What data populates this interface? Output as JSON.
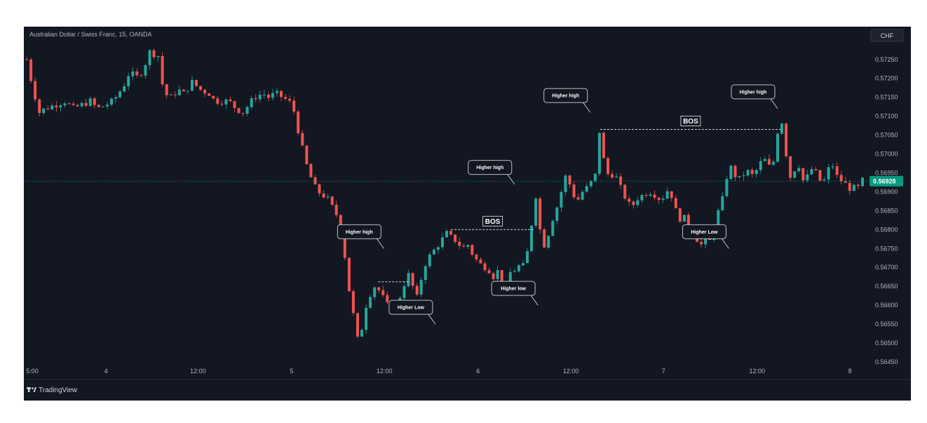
{
  "chart_data": {
    "type": "candlestick",
    "title": "Australian Dollar / Swiss Franc, 15, OANDA",
    "currency": "CHF",
    "brand": "TradingView",
    "ylim": [
      0.5645,
      0.5727
    ],
    "y_ticks": [
      "0.57250",
      "0.57200",
      "0.57150",
      "0.57100",
      "0.57050",
      "0.57000",
      "0.56950",
      "0.56900",
      "0.56850",
      "0.56800",
      "0.56750",
      "0.56700",
      "0.56650",
      "0.56600",
      "0.56550",
      "0.56500",
      "0.56450"
    ],
    "x_ticks": [
      {
        "label": "5:00",
        "pos": 0
      },
      {
        "label": "4",
        "pos": 0.095
      },
      {
        "label": "12:00",
        "pos": 0.205
      },
      {
        "label": "5",
        "pos": 0.317
      },
      {
        "label": "12:00",
        "pos": 0.428
      },
      {
        "label": "6",
        "pos": 0.54
      },
      {
        "label": "12:00",
        "pos": 0.651
      },
      {
        "label": "7",
        "pos": 0.762
      },
      {
        "label": "12:00",
        "pos": 0.874
      },
      {
        "label": "8",
        "pos": 0.985
      }
    ],
    "current_price": 0.56928,
    "current_price_label": "0.56928",
    "colors": {
      "up": "#26a69a",
      "down": "#ef5350",
      "background": "#131722",
      "axis_text": "#b2b5be",
      "price_tag": "#089981"
    },
    "close_path": [
      [
        0,
        0.5725
      ],
      [
        8,
        0.5718
      ],
      [
        18,
        0.5711
      ],
      [
        26,
        0.5712
      ],
      [
        40,
        0.5713
      ],
      [
        55,
        0.5714
      ],
      [
        65,
        0.5712
      ],
      [
        78,
        0.5713
      ],
      [
        90,
        0.5714
      ],
      [
        100,
        0.5712
      ],
      [
        112,
        0.5713
      ],
      [
        122,
        0.5714
      ],
      [
        130,
        0.5716
      ],
      [
        140,
        0.5719
      ],
      [
        146,
        0.5722
      ],
      [
        154,
        0.572
      ],
      [
        164,
        0.5722
      ],
      [
        174,
        0.5727
      ],
      [
        186,
        0.5726
      ],
      [
        194,
        0.5716
      ],
      [
        204,
        0.5715
      ],
      [
        214,
        0.5717
      ],
      [
        222,
        0.5716
      ],
      [
        234,
        0.5719
      ],
      [
        246,
        0.5717
      ],
      [
        258,
        0.5716
      ],
      [
        266,
        0.5714
      ],
      [
        276,
        0.5714
      ],
      [
        286,
        0.5714
      ],
      [
        296,
        0.5712
      ],
      [
        306,
        0.5711
      ],
      [
        314,
        0.5713
      ],
      [
        322,
        0.5715
      ],
      [
        334,
        0.5716
      ],
      [
        342,
        0.5715
      ],
      [
        352,
        0.5716
      ],
      [
        362,
        0.5715
      ],
      [
        370,
        0.5714
      ],
      [
        376,
        0.5713
      ],
      [
        382,
        0.5708
      ],
      [
        388,
        0.5703
      ],
      [
        394,
        0.5698
      ],
      [
        400,
        0.5695
      ],
      [
        405,
        0.5692
      ],
      [
        412,
        0.569
      ],
      [
        420,
        0.5689
      ],
      [
        426,
        0.5688
      ],
      [
        432,
        0.5686
      ],
      [
        438,
        0.5684
      ],
      [
        444,
        0.568
      ],
      [
        448,
        0.5676
      ],
      [
        452,
        0.567
      ],
      [
        456,
        0.5664
      ],
      [
        460,
        0.566
      ],
      [
        464,
        0.5655
      ],
      [
        468,
        0.5651
      ],
      [
        472,
        0.5652
      ],
      [
        476,
        0.5656
      ],
      [
        480,
        0.566
      ],
      [
        486,
        0.5663
      ],
      [
        492,
        0.5665
      ],
      [
        498,
        0.5664
      ],
      [
        504,
        0.5662
      ],
      [
        510,
        0.566
      ],
      [
        514,
        0.5661
      ],
      [
        518,
        0.5659
      ],
      [
        524,
        0.5661
      ],
      [
        530,
        0.5663
      ],
      [
        536,
        0.5667
      ],
      [
        540,
        0.5668
      ],
      [
        546,
        0.5665
      ],
      [
        550,
        0.5661
      ],
      [
        554,
        0.5663
      ],
      [
        558,
        0.5667
      ],
      [
        564,
        0.5671
      ],
      [
        570,
        0.5673
      ],
      [
        578,
        0.5675
      ],
      [
        586,
        0.5677
      ],
      [
        594,
        0.5679
      ],
      [
        600,
        0.5678
      ],
      [
        608,
        0.5677
      ],
      [
        616,
        0.5675
      ],
      [
        624,
        0.5676
      ],
      [
        632,
        0.5673
      ],
      [
        640,
        0.5671
      ],
      [
        650,
        0.567
      ],
      [
        656,
        0.5669
      ],
      [
        662,
        0.5667
      ],
      [
        668,
        0.567
      ],
      [
        672,
        0.5664
      ],
      [
        676,
        0.5661
      ],
      [
        680,
        0.5666
      ],
      [
        686,
        0.567
      ],
      [
        692,
        0.5669
      ],
      [
        698,
        0.5671
      ],
      [
        704,
        0.567
      ],
      [
        708,
        0.5674
      ],
      [
        712,
        0.5678
      ],
      [
        716,
        0.5685
      ],
      [
        720,
        0.5689
      ],
      [
        724,
        0.5683
      ],
      [
        728,
        0.5677
      ],
      [
        732,
        0.5676
      ],
      [
        738,
        0.5679
      ],
      [
        744,
        0.5683
      ],
      [
        750,
        0.5686
      ],
      [
        756,
        0.569
      ],
      [
        762,
        0.5694
      ],
      [
        768,
        0.5692
      ],
      [
        774,
        0.5689
      ],
      [
        780,
        0.5688
      ],
      [
        786,
        0.569
      ],
      [
        792,
        0.5691
      ],
      [
        800,
        0.5693
      ],
      [
        806,
        0.5695
      ],
      [
        810,
        0.5706
      ],
      [
        814,
        0.5701
      ],
      [
        818,
        0.5696
      ],
      [
        824,
        0.5694
      ],
      [
        830,
        0.5695
      ],
      [
        836,
        0.5693
      ],
      [
        842,
        0.569
      ],
      [
        848,
        0.5688
      ],
      [
        854,
        0.5686
      ],
      [
        860,
        0.5687
      ],
      [
        866,
        0.5689
      ],
      [
        872,
        0.5689
      ],
      [
        878,
        0.569
      ],
      [
        884,
        0.569
      ],
      [
        890,
        0.5689
      ],
      [
        896,
        0.5688
      ],
      [
        902,
        0.5689
      ],
      [
        908,
        0.5691
      ],
      [
        914,
        0.5688
      ],
      [
        918,
        0.5685
      ],
      [
        924,
        0.5683
      ],
      [
        930,
        0.5683
      ],
      [
        936,
        0.5681
      ],
      [
        942,
        0.5679
      ],
      [
        946,
        0.5678
      ],
      [
        950,
        0.5677
      ],
      [
        954,
        0.5676
      ],
      [
        958,
        0.5676
      ],
      [
        962,
        0.5678
      ],
      [
        966,
        0.5677
      ],
      [
        970,
        0.5678
      ],
      [
        974,
        0.5682
      ],
      [
        980,
        0.5686
      ],
      [
        986,
        0.5689
      ],
      [
        990,
        0.5694
      ],
      [
        994,
        0.5697
      ],
      [
        1000,
        0.5695
      ],
      [
        1006,
        0.5693
      ],
      [
        1012,
        0.5694
      ],
      [
        1018,
        0.5696
      ],
      [
        1024,
        0.5694
      ],
      [
        1030,
        0.5695
      ],
      [
        1036,
        0.5697
      ],
      [
        1042,
        0.5699
      ],
      [
        1048,
        0.5697
      ],
      [
        1054,
        0.5696
      ],
      [
        1058,
        0.57
      ],
      [
        1062,
        0.5706
      ],
      [
        1066,
        0.5709
      ],
      [
        1070,
        0.5708
      ],
      [
        1074,
        0.57
      ],
      [
        1080,
        0.5694
      ],
      [
        1086,
        0.5696
      ],
      [
        1092,
        0.5697
      ],
      [
        1098,
        0.5693
      ],
      [
        1104,
        0.5694
      ],
      [
        1110,
        0.5696
      ],
      [
        1116,
        0.5695
      ],
      [
        1122,
        0.5693
      ],
      [
        1128,
        0.5693
      ],
      [
        1134,
        0.5696
      ],
      [
        1140,
        0.5697
      ],
      [
        1146,
        0.5694
      ],
      [
        1152,
        0.5693
      ],
      [
        1158,
        0.5692
      ],
      [
        1164,
        0.5691
      ],
      [
        1170,
        0.5691
      ],
      [
        1174,
        0.5692
      ],
      [
        1178,
        0.569
      ],
      [
        1182,
        0.5693
      ]
    ],
    "annotations": [
      {
        "type": "callout",
        "text": "Higher high",
        "x": 505,
        "y": 0.5675
      },
      {
        "type": "callout",
        "text": "Higher Low",
        "x": 578,
        "y": 0.5655
      },
      {
        "type": "callout",
        "text": "Higher high",
        "x": 690,
        "y": 0.5692
      },
      {
        "type": "callout",
        "text": "Higher low",
        "x": 723,
        "y": 0.566
      },
      {
        "type": "callout",
        "text": "Higher high",
        "x": 797,
        "y": 0.5711
      },
      {
        "type": "callout",
        "text": "Higher Low",
        "x": 993,
        "y": 0.5675
      },
      {
        "type": "callout",
        "text": "Higher high",
        "x": 1062,
        "y": 0.5712
      },
      {
        "type": "bos",
        "text": "BOS",
        "x1": 600,
        "x2": 718,
        "y": 0.568
      },
      {
        "type": "bos",
        "text": "BOS",
        "x1": 811,
        "x2": 1067,
        "y": 0.57065
      },
      {
        "type": "level",
        "x1": 497,
        "x2": 540,
        "y": 0.56662
      }
    ]
  }
}
